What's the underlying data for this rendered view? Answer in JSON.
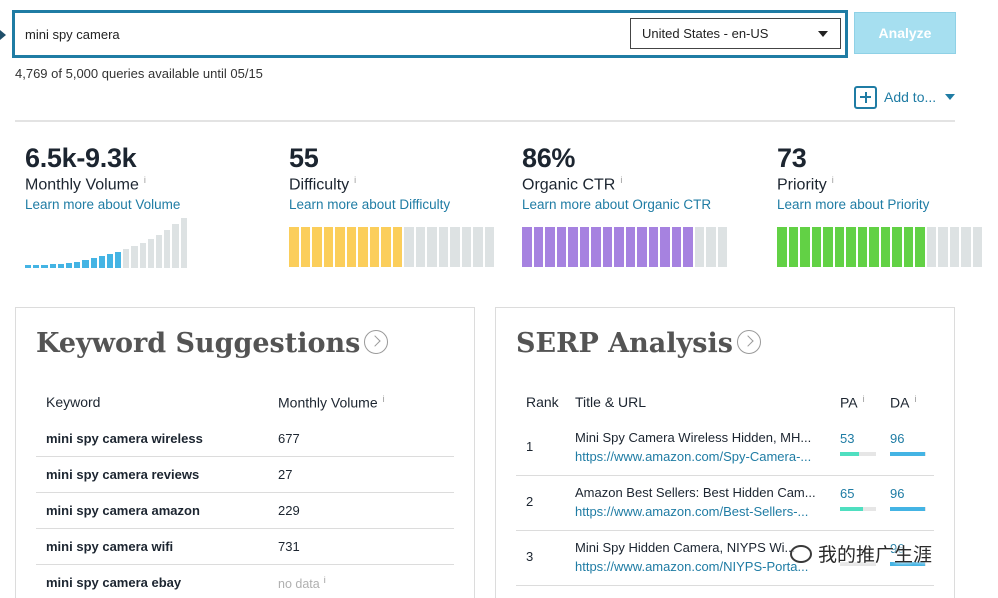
{
  "search": {
    "query": "mini spy camera",
    "placeholder": "",
    "locale": "United States - en-US",
    "analyze_label": "Analyze"
  },
  "quota_text": "4,769 of 5,000 queries available until 05/15",
  "add_to_label": "Add to...",
  "metrics": {
    "volume": {
      "value": "6.5k-9.3k",
      "label": "Monthly Volume",
      "info": "i",
      "link": "Learn more about Volume"
    },
    "difficulty": {
      "value": "55",
      "label": "Difficulty",
      "info": "i",
      "link": "Learn more about Difficulty",
      "filled_segments": 10,
      "total_segments": 18,
      "fill_color": "#fbce5b"
    },
    "ctr": {
      "value": "86%",
      "label": "Organic CTR",
      "info": "i",
      "link": "Learn more about Organic CTR",
      "filled_segments": 15,
      "total_segments": 18,
      "fill_color": "#a682e0"
    },
    "priority": {
      "value": "73",
      "label": "Priority",
      "info": "i",
      "link": "Learn more about Priority",
      "filled_segments": 13,
      "total_segments": 18,
      "fill_color": "#62d145"
    }
  },
  "colors": {
    "accent": "#1f7ca4",
    "volume_fill": "#44b4e4",
    "empty": "#dde2e3"
  },
  "keyword_suggestions": {
    "title": "Keyword Suggestions",
    "col_keyword": "Keyword",
    "col_volume": "Monthly Volume",
    "col_info": "i",
    "rows": [
      {
        "keyword": "mini spy camera wireless",
        "volume": "677"
      },
      {
        "keyword": "mini spy camera reviews",
        "volume": "27"
      },
      {
        "keyword": "mini spy camera amazon",
        "volume": "229"
      },
      {
        "keyword": "mini spy camera wifi",
        "volume": "731"
      },
      {
        "keyword": "mini spy camera ebay",
        "volume": "no data",
        "info": "i"
      }
    ]
  },
  "serp_analysis": {
    "title": "SERP Analysis",
    "col_rank": "Rank",
    "col_title": "Title & URL",
    "col_pa": "PA",
    "col_da": "DA",
    "col_info": "i",
    "rows": [
      {
        "rank": "1",
        "title": "Mini Spy Camera Wireless Hidden, MH...",
        "url": "https://www.amazon.com/Spy-Camera-...",
        "pa": "53",
        "da": "96"
      },
      {
        "rank": "2",
        "title": "Amazon Best Sellers: Best Hidden Cam...",
        "url": "https://www.amazon.com/Best-Sellers-...",
        "pa": "65",
        "da": "96"
      },
      {
        "rank": "3",
        "title": "Mini Spy Hidden Camera, NIYPS Wi...",
        "url": "https://www.amazon.com/NIYPS-Porta...",
        "pa": "",
        "da": "96"
      }
    ]
  },
  "watermark_text": "我的推广生涯"
}
